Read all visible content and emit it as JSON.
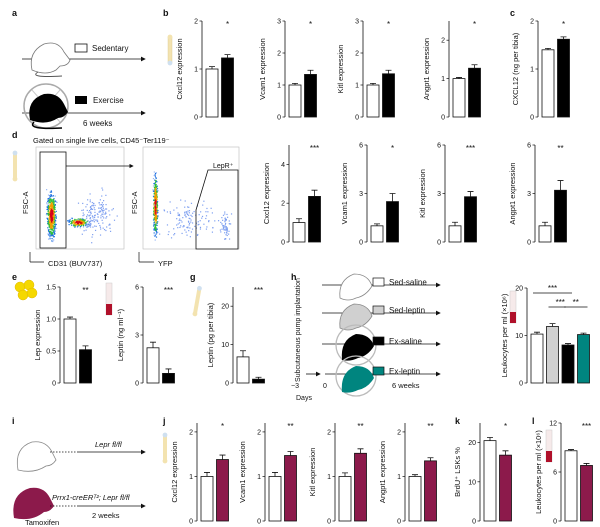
{
  "colors": {
    "sedentary": "#ffffff",
    "exercise": "#000000",
    "sed_leptin": "#d0d0d0",
    "ex_leptin": "#00857f",
    "cko": "#8c1a4b",
    "bone": "#f3e3b0",
    "fat": "#f5d800",
    "blood": "#b0102a"
  },
  "panel_labels": {
    "a": "a",
    "b": "b",
    "c": "c",
    "d": "d",
    "e": "e",
    "f": "f",
    "g": "g",
    "h": "h",
    "i": "i",
    "j": "j",
    "k": "k",
    "l": "l"
  },
  "icons": {
    "bone": "bone-icon",
    "blood_tube": "blood-tube-icon",
    "fat_cells": "adipocyte-icon",
    "mouse": "mouse-icon",
    "running_wheel": "running-wheel-icon"
  },
  "panel_a": {
    "legend": [
      {
        "label": "Sedentary",
        "color": "sedentary"
      },
      {
        "label": "Exercise",
        "color": "exercise"
      }
    ],
    "duration": "6 weeks"
  },
  "panel_d_flow": {
    "title": "Gated on single live cells, CD45⁻Ter119⁻",
    "plot1": {
      "ylabel": "FSC-A",
      "xlabel": "CD31 (BUV737)"
    },
    "plot2": {
      "ylabel": "FSC-A",
      "xlabel": "YFP",
      "gate": "LepR⁺"
    }
  },
  "panel_h": {
    "side_label": "Subcutaneous pump implantation",
    "legend": [
      {
        "label": "Sed-saline",
        "color": "sedentary"
      },
      {
        "label": "Sed-leptin",
        "color": "sed_leptin"
      },
      {
        "label": "Ex-saline",
        "color": "exercise"
      },
      {
        "label": "Ex-leptin",
        "color": "ex_leptin"
      }
    ],
    "timeline": {
      "start": "−3",
      "zero": "0",
      "unit": "Days",
      "end": "6 weeks"
    }
  },
  "panel_i": {
    "control": "Lepr fl/fl",
    "mutant": "Prrx1-creERᵀ²; Lepr fl/fl",
    "duration": "2 weeks",
    "treatment": "Tamoxifen"
  },
  "chart_data": [
    {
      "id": "b1",
      "panel": "b",
      "type": "bar",
      "ylabel": "Cxcl12 expression",
      "ylim": [
        0,
        2
      ],
      "yticks": [
        "0",
        "1",
        "2"
      ],
      "bars": [
        {
          "value": 1.0,
          "sem": 0.05,
          "color": "sedentary"
        },
        {
          "value": 1.23,
          "sem": 0.07,
          "color": "exercise"
        }
      ],
      "sig": [
        {
          "text": "*",
          "from": 1,
          "to": 1
        }
      ]
    },
    {
      "id": "b2",
      "panel": "b",
      "type": "bar",
      "ylabel": "Vcam1 expression",
      "ylim": [
        0,
        3
      ],
      "yticks": [
        "0",
        "1",
        "2",
        "3"
      ],
      "bars": [
        {
          "value": 1.0,
          "sem": 0.05,
          "color": "sedentary"
        },
        {
          "value": 1.33,
          "sem": 0.13,
          "color": "exercise"
        }
      ],
      "sig": [
        {
          "text": "*",
          "from": 1,
          "to": 1
        }
      ]
    },
    {
      "id": "b3",
      "panel": "b",
      "type": "bar",
      "ylabel": "Kitl expression",
      "ylim": [
        0,
        3
      ],
      "yticks": [
        "0",
        "1",
        "2",
        "3"
      ],
      "bars": [
        {
          "value": 1.0,
          "sem": 0.05,
          "color": "sedentary"
        },
        {
          "value": 1.35,
          "sem": 0.11,
          "color": "exercise"
        }
      ],
      "sig": [
        {
          "text": "*",
          "from": 1,
          "to": 1
        }
      ]
    },
    {
      "id": "b4",
      "panel": "b",
      "type": "bar",
      "ylabel": "Angpt1 expression",
      "ylim": [
        0,
        2.5
      ],
      "yticks": [
        "0",
        "1",
        "2"
      ],
      "bars": [
        {
          "value": 1.0,
          "sem": 0.03,
          "color": "sedentary"
        },
        {
          "value": 1.27,
          "sem": 0.09,
          "color": "exercise"
        }
      ],
      "sig": [
        {
          "text": "*",
          "from": 1,
          "to": 1
        }
      ]
    },
    {
      "id": "c",
      "panel": "c",
      "type": "bar",
      "ylabel": "CXCL12 (ng per tibia)",
      "ylim": [
        0,
        2
      ],
      "yticks": [
        "0",
        "1",
        "2"
      ],
      "bars": [
        {
          "value": 1.4,
          "sem": 0.03,
          "color": "sedentary"
        },
        {
          "value": 1.62,
          "sem": 0.05,
          "color": "exercise"
        }
      ],
      "sig": [
        {
          "text": "*",
          "from": 1,
          "to": 1
        }
      ]
    },
    {
      "id": "d1",
      "panel": "d",
      "type": "bar",
      "ylabel": "Cxcl12 expression",
      "ylim": [
        0,
        5
      ],
      "yticks": [
        "0",
        "2",
        "4"
      ],
      "bars": [
        {
          "value": 1.0,
          "sem": 0.2,
          "color": "sedentary"
        },
        {
          "value": 2.35,
          "sem": 0.32,
          "color": "exercise"
        }
      ],
      "sig": [
        {
          "text": "***",
          "from": 1,
          "to": 1
        }
      ]
    },
    {
      "id": "d2",
      "panel": "d",
      "type": "bar",
      "ylabel": "Vcam1 expression",
      "ylim": [
        0,
        6
      ],
      "yticks": [
        "0",
        "3",
        "6"
      ],
      "bars": [
        {
          "value": 1.0,
          "sem": 0.12,
          "color": "sedentary"
        },
        {
          "value": 2.5,
          "sem": 0.5,
          "color": "exercise"
        }
      ],
      "sig": [
        {
          "text": "*",
          "from": 1,
          "to": 1
        }
      ]
    },
    {
      "id": "d3",
      "panel": "d",
      "type": "bar",
      "ylabel": "Kitl expression",
      "ylim": [
        0,
        6
      ],
      "yticks": [
        "0",
        "3",
        "6"
      ],
      "bars": [
        {
          "value": 1.0,
          "sem": 0.22,
          "color": "sedentary"
        },
        {
          "value": 2.8,
          "sem": 0.32,
          "color": "exercise"
        }
      ],
      "sig": [
        {
          "text": "***",
          "from": 1,
          "to": 1
        }
      ]
    },
    {
      "id": "d4",
      "panel": "d",
      "type": "bar",
      "ylabel": "Angpt1 expression",
      "ylim": [
        0,
        6
      ],
      "yticks": [
        "0",
        "3",
        "6"
      ],
      "bars": [
        {
          "value": 1.0,
          "sem": 0.22,
          "color": "sedentary"
        },
        {
          "value": 3.2,
          "sem": 0.6,
          "color": "exercise"
        }
      ],
      "sig": [
        {
          "text": "**",
          "from": 1,
          "to": 1
        }
      ]
    },
    {
      "id": "e",
      "panel": "e",
      "type": "bar",
      "ylabel": "Lep expression",
      "ylim": [
        0,
        1.5
      ],
      "yticks": [
        "0",
        "0.5",
        "1.0",
        "1.5"
      ],
      "bars": [
        {
          "value": 1.0,
          "sem": 0.03,
          "color": "sedentary"
        },
        {
          "value": 0.52,
          "sem": 0.06,
          "color": "exercise"
        }
      ],
      "sig": [
        {
          "text": "**",
          "from": 1,
          "to": 1
        }
      ]
    },
    {
      "id": "f",
      "panel": "f",
      "type": "bar",
      "ylabel": "Leptin (ng ml⁻¹)",
      "ylim": [
        0,
        6
      ],
      "yticks": [
        "0",
        "3",
        "6"
      ],
      "bars": [
        {
          "value": 2.2,
          "sem": 0.35,
          "color": "sedentary"
        },
        {
          "value": 0.6,
          "sem": 0.28,
          "color": "exercise"
        }
      ],
      "sig": [
        {
          "text": "***",
          "from": 1,
          "to": 1
        }
      ]
    },
    {
      "id": "g",
      "panel": "g",
      "type": "bar",
      "ylabel": "Leptin (pg per tibia)",
      "ylim": [
        0,
        25
      ],
      "yticks": [
        "0",
        "10",
        "20"
      ],
      "bars": [
        {
          "value": 6.8,
          "sem": 1.6,
          "color": "sedentary"
        },
        {
          "value": 1.0,
          "sem": 0.5,
          "color": "exercise"
        }
      ],
      "sig": [
        {
          "text": "***",
          "from": 1,
          "to": 1
        }
      ]
    },
    {
      "id": "h",
      "panel": "h",
      "type": "bar",
      "ylabel": "Leukocytes per ml (×10⁶)",
      "ylim": [
        0,
        20
      ],
      "yticks": [
        "0",
        "10",
        "20"
      ],
      "bars": [
        {
          "value": 10.3,
          "sem": 0.4,
          "color": "sedentary"
        },
        {
          "value": 11.9,
          "sem": 0.6,
          "color": "sed_leptin"
        },
        {
          "value": 8.0,
          "sem": 0.3,
          "color": "exercise"
        },
        {
          "value": 10.2,
          "sem": 0.3,
          "color": "ex_leptin"
        }
      ],
      "sig": [
        {
          "text": "***",
          "from": 0,
          "to": 2
        },
        {
          "text": "***",
          "from": 1,
          "to": 2
        },
        {
          "text": "**",
          "from": 2,
          "to": 3
        }
      ]
    },
    {
      "id": "j1",
      "panel": "j",
      "type": "bar",
      "ylabel": "Cxcl12 expression",
      "ylim": [
        0,
        2.2
      ],
      "yticks": [
        "0",
        "1",
        "2"
      ],
      "bars": [
        {
          "value": 1.0,
          "sem": 0.09,
          "color": "sedentary"
        },
        {
          "value": 1.38,
          "sem": 0.1,
          "color": "cko"
        }
      ],
      "sig": [
        {
          "text": "*",
          "from": 1,
          "to": 1
        }
      ]
    },
    {
      "id": "j2",
      "panel": "j",
      "type": "bar",
      "ylabel": "Vcam1 expression",
      "ylim": [
        0,
        2.2
      ],
      "yticks": [
        "0",
        "1",
        "2"
      ],
      "bars": [
        {
          "value": 1.0,
          "sem": 0.09,
          "color": "sedentary"
        },
        {
          "value": 1.47,
          "sem": 0.09,
          "color": "cko"
        }
      ],
      "sig": [
        {
          "text": "**",
          "from": 1,
          "to": 1
        }
      ]
    },
    {
      "id": "j3",
      "panel": "j",
      "type": "bar",
      "ylabel": "Kitl expression",
      "ylim": [
        0,
        2.2
      ],
      "yticks": [
        "0",
        "1",
        "2"
      ],
      "bars": [
        {
          "value": 1.0,
          "sem": 0.08,
          "color": "sedentary"
        },
        {
          "value": 1.52,
          "sem": 0.1,
          "color": "cko"
        }
      ],
      "sig": [
        {
          "text": "**",
          "from": 1,
          "to": 1
        }
      ]
    },
    {
      "id": "j4",
      "panel": "j",
      "type": "bar",
      "ylabel": "Angpt1 expression",
      "ylim": [
        0,
        2.2
      ],
      "yticks": [
        "0",
        "1",
        "2"
      ],
      "bars": [
        {
          "value": 1.0,
          "sem": 0.04,
          "color": "sedentary"
        },
        {
          "value": 1.35,
          "sem": 0.07,
          "color": "cko"
        }
      ],
      "sig": [
        {
          "text": "**",
          "from": 1,
          "to": 1
        }
      ]
    },
    {
      "id": "k",
      "panel": "k",
      "type": "bar",
      "ylabel": "BrdU⁺ LSKs %",
      "ylim": [
        0,
        25
      ],
      "yticks": [
        "0",
        "10",
        "20"
      ],
      "bars": [
        {
          "value": 20.5,
          "sem": 0.8,
          "color": "sedentary"
        },
        {
          "value": 16.8,
          "sem": 1.1,
          "color": "cko"
        }
      ],
      "sig": [
        {
          "text": "*",
          "from": 1,
          "to": 1
        }
      ]
    },
    {
      "id": "l",
      "panel": "l",
      "type": "bar",
      "ylabel": "Leukocytes per ml (×10⁶)",
      "ylim": [
        0,
        12
      ],
      "yticks": [
        "0",
        "6",
        "12"
      ],
      "bars": [
        {
          "value": 8.6,
          "sem": 0.15,
          "color": "sedentary"
        },
        {
          "value": 6.8,
          "sem": 0.25,
          "color": "cko"
        }
      ],
      "sig": [
        {
          "text": "***",
          "from": 1,
          "to": 1
        }
      ]
    }
  ]
}
